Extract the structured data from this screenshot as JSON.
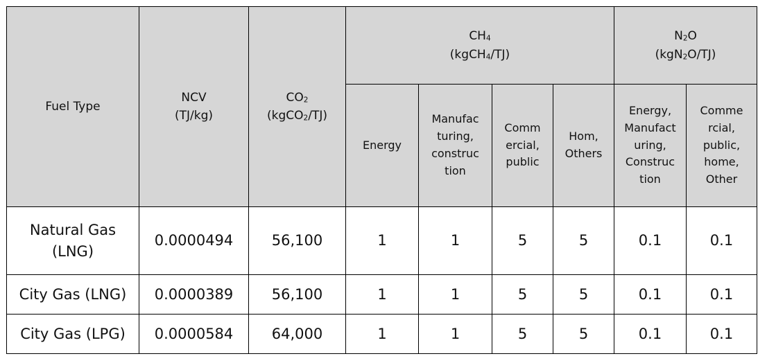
{
  "header": {
    "fuel_type": "Fuel Type",
    "ncv_label": "NCV",
    "ncv_unit": "(TJ/kg)",
    "co2_main": "CO",
    "co2_sub": "2",
    "co2_unit_pre": "(kgCO",
    "co2_unit_sub": "2",
    "co2_unit_post": "/TJ)",
    "ch4_main": "CH",
    "ch4_sub": "4",
    "ch4_unit_pre": "(kgCH",
    "ch4_unit_sub": "4",
    "ch4_unit_post": "/TJ)",
    "n2o_pre": "N",
    "n2o_sub": "2",
    "n2o_post": "O",
    "n2o_unit_pre": "(kgN",
    "n2o_unit_sub": "2",
    "n2o_unit_post": "O/TJ)",
    "ch4_cols": [
      {
        "lines": [
          "Energy"
        ]
      },
      {
        "lines": [
          "Manufac",
          "turing,",
          "construc",
          "tion"
        ]
      },
      {
        "lines": [
          "Comm",
          "ercial,",
          "public"
        ]
      },
      {
        "lines": [
          "Hom,",
          "Others"
        ]
      }
    ],
    "n2o_cols": [
      {
        "lines": [
          "Energy,",
          "Manufact",
          "uring,",
          "Construc",
          "tion"
        ]
      },
      {
        "lines": [
          "Comme",
          "rcial,",
          "public,",
          "home,",
          "Other"
        ]
      }
    ]
  },
  "rows": [
    {
      "fuel_lines": [
        "Natural Gas",
        "(LNG)"
      ],
      "ncv": "0.0000494",
      "co2": "56,100",
      "ch4": [
        "1",
        "1",
        "5",
        "5"
      ],
      "n2o": [
        "0.1",
        "0.1"
      ]
    },
    {
      "fuel_lines": [
        "City Gas (LNG)"
      ],
      "ncv": "0.0000389",
      "co2": "56,100",
      "ch4": [
        "1",
        "1",
        "5",
        "5"
      ],
      "n2o": [
        "0.1",
        "0.1"
      ]
    },
    {
      "fuel_lines": [
        "City Gas (LPG)"
      ],
      "ncv": "0.0000584",
      "co2": "64,000",
      "ch4": [
        "1",
        "1",
        "5",
        "5"
      ],
      "n2o": [
        "0.1",
        "0.1"
      ]
    }
  ]
}
